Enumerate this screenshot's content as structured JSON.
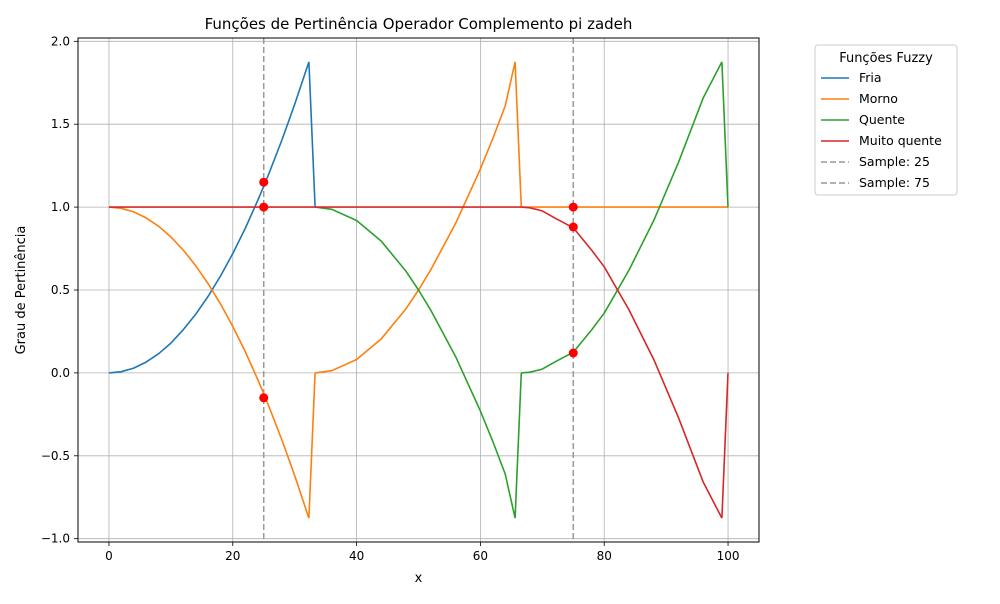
{
  "chart_data": {
    "type": "line",
    "title": "Funções de Pertinência Operador Complemento pi zadeh",
    "xlabel": "x",
    "ylabel": "Grau de Pertinência",
    "xlim": [
      -5,
      105
    ],
    "ylim": [
      -1.02,
      2.02
    ],
    "xticks": [
      0,
      20,
      40,
      60,
      80,
      100
    ],
    "yticks": [
      -1.0,
      -0.5,
      0.0,
      0.5,
      1.0,
      1.5,
      2.0
    ],
    "xtick_labels": [
      "0",
      "20",
      "40",
      "60",
      "80",
      "100"
    ],
    "ytick_labels": [
      "−1.0",
      "−0.5",
      "0.0",
      "0.5",
      "1.0",
      "1.5",
      "2.0"
    ],
    "grid": true,
    "legend": {
      "title": "Funções Fuzzy",
      "placement": "outside-top-right",
      "entries": [
        "Fria",
        "Morno",
        "Quente",
        "Muito quente",
        "Sample: 25",
        "Sample: 75"
      ]
    },
    "series": [
      {
        "name": "Fria",
        "color": "#1f77b4",
        "points": [
          [
            0,
            1.0
          ],
          [
            10,
            1.0
          ],
          [
            20,
            1.0
          ],
          [
            25,
            1.0
          ],
          [
            30,
            1.0
          ],
          [
            32.3,
            1.0
          ],
          [
            33.3,
            1.0
          ],
          [
            40,
            1.0
          ],
          [
            50,
            1.0
          ],
          [
            60,
            1.0
          ],
          [
            70,
            1.0
          ],
          [
            80,
            1.0
          ],
          [
            90,
            1.0
          ],
          [
            100,
            1.0
          ]
        ],
        "segments": [
          {
            "x": [
              0,
              2,
              4,
              6,
              8,
              10,
              12,
              14,
              16,
              18,
              20,
              22,
              24,
              25,
              26,
              28,
              30,
              32.3
            ],
            "y": [
              0.0,
              0.0072,
              0.0288,
              0.065,
              0.115,
              0.18,
              0.26,
              0.353,
              0.461,
              0.583,
              0.72,
              0.871,
              1.037,
              1.125,
              1.217,
              1.411,
              1.62,
              1.876
            ]
          },
          {
            "x": [
              32.3,
              33.3
            ],
            "y": [
              1.876,
              1.0
            ]
          }
        ]
      },
      {
        "name": "Morno",
        "color": "#ff7f0e",
        "segments": [
          {
            "x": [
              0,
              2,
              4,
              6,
              8,
              10,
              12,
              14,
              16,
              18,
              20,
              22,
              24,
              25,
              26,
              28,
              30,
              32.3
            ],
            "y": [
              1.0,
              0.993,
              0.971,
              0.935,
              0.885,
              0.82,
              0.741,
              0.647,
              0.539,
              0.417,
              0.28,
              0.129,
              -0.037,
              -0.125,
              -0.217,
              -0.411,
              -0.62,
              -0.876
            ]
          },
          {
            "x": [
              32.3,
              33.3
            ],
            "y": [
              -0.876,
              0.0
            ]
          },
          {
            "x": [
              33.3,
              36,
              40,
              44,
              48,
              50,
              52,
              56,
              60,
              62,
              64,
              65.6
            ],
            "y": [
              0.0,
              0.013,
              0.081,
              0.206,
              0.388,
              0.5,
              0.623,
              0.902,
              1.23,
              1.413,
              1.61,
              1.876
            ]
          },
          {
            "x": [
              65.6,
              66.6
            ],
            "y": [
              1.876,
              1.0
            ]
          },
          {
            "x": [
              66.6,
              70,
              80,
              90,
              100
            ],
            "y": [
              1.0,
              1.0,
              1.0,
              1.0,
              1.0
            ]
          }
        ]
      },
      {
        "name": "Quente",
        "color": "#2ca02c",
        "segments": [
          {
            "x": [
              33.3,
              36,
              40,
              44,
              48,
              50,
              52,
              56,
              60,
              62,
              64,
              65.6
            ],
            "y": [
              1.0,
              0.987,
              0.919,
              0.794,
              0.612,
              0.5,
              0.377,
              0.098,
              -0.23,
              -0.413,
              -0.61,
              -0.876
            ]
          },
          {
            "x": [
              65.6,
              66.6
            ],
            "y": [
              -0.876,
              0.0
            ]
          },
          {
            "x": [
              66.6,
              68,
              70,
              72,
              75,
              78,
              80,
              84,
              88,
              92,
              96,
              99
            ],
            "y": [
              0.0,
              0.004,
              0.023,
              0.065,
              0.125,
              0.261,
              0.36,
              0.62,
              0.92,
              1.27,
              1.66,
              1.876
            ]
          },
          {
            "x": [
              99,
              100
            ],
            "y": [
              1.876,
              1.0
            ]
          }
        ]
      },
      {
        "name": "Muito quente",
        "color": "#d62728",
        "segments": [
          {
            "x": [
              0,
              10,
              20,
              30,
              40,
              50,
              60,
              66.6
            ],
            "y": [
              1.0,
              1.0,
              1.0,
              1.0,
              1.0,
              1.0,
              1.0,
              1.0
            ]
          },
          {
            "x": [
              66.6,
              68,
              70,
              72,
              75,
              78,
              80,
              84,
              88,
              92,
              96,
              99
            ],
            "y": [
              1.0,
              0.996,
              0.977,
              0.935,
              0.875,
              0.739,
              0.64,
              0.38,
              0.08,
              -0.27,
              -0.66,
              -0.876
            ]
          },
          {
            "x": [
              99,
              100
            ],
            "y": [
              -0.876,
              0.0
            ]
          }
        ]
      }
    ],
    "sample_lines": [
      {
        "name": "Sample: 25",
        "x": 25,
        "color": "#999999"
      },
      {
        "name": "Sample: 75",
        "x": 75,
        "color": "#999999"
      }
    ],
    "sample_points": [
      {
        "x": 25,
        "y": 1.15
      },
      {
        "x": 25,
        "y": 1.0
      },
      {
        "x": 25,
        "y": -0.15
      },
      {
        "x": 75,
        "y": 1.0
      },
      {
        "x": 75,
        "y": 0.88
      },
      {
        "x": 75,
        "y": 0.12
      }
    ],
    "sample_point_color": "#ff0000"
  }
}
